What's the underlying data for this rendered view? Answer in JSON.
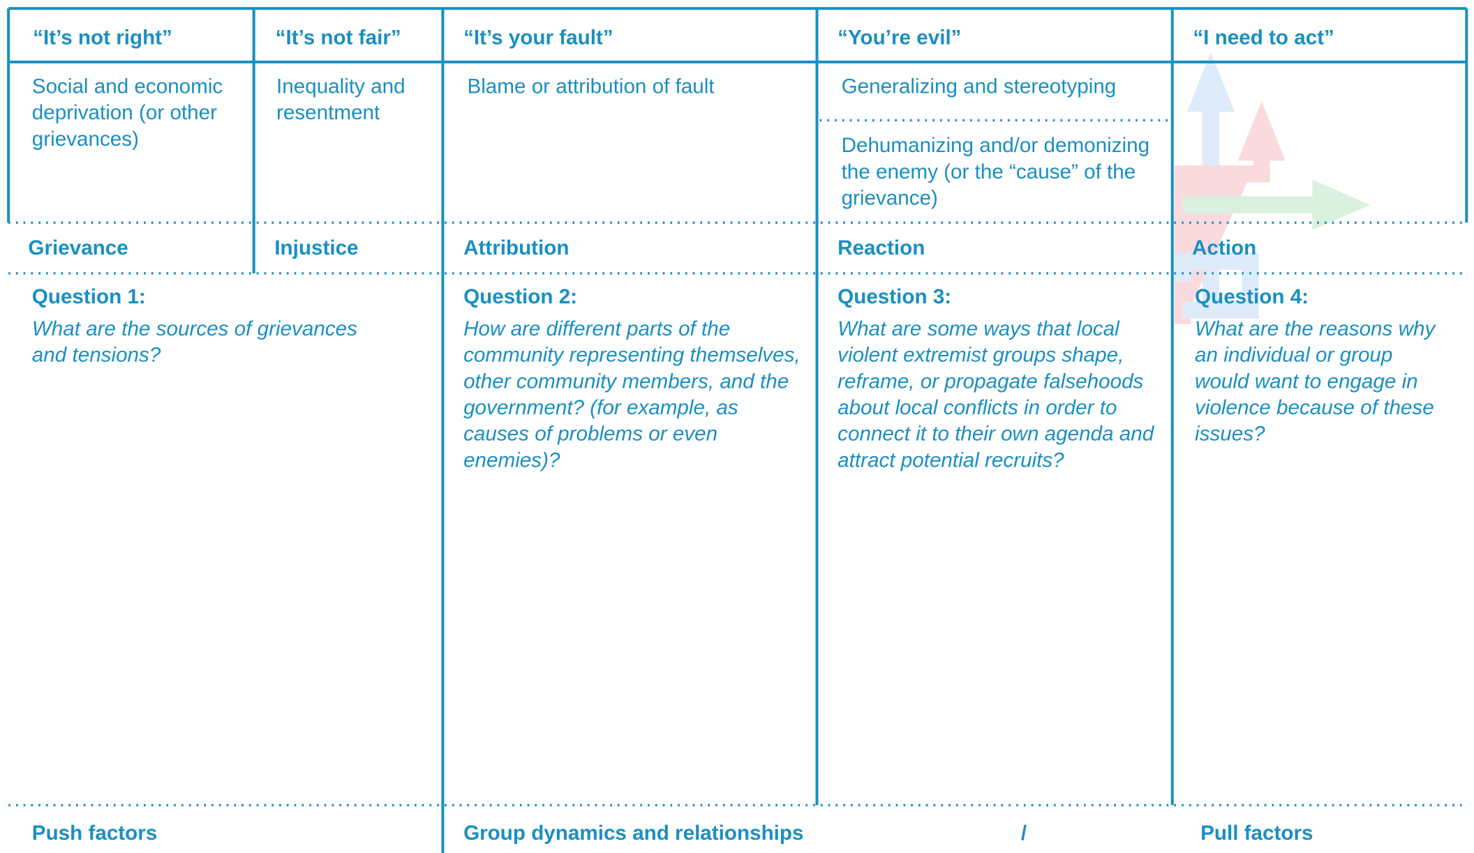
{
  "header": {
    "columns": [
      "“It’s not right”",
      "“It’s not fair”",
      "“It’s your fault”",
      "“You’re evil”",
      "“I need to act”"
    ]
  },
  "descriptions": {
    "grievance": "Social and economic deprivation (or other grievances)",
    "injustice": "Inequality and resentment",
    "attribution": "Blame or attribution of fault",
    "reaction": [
      "Generalizing and stereotyping",
      "Dehumanizing and/or demonizing the enemy (or the “cause” of the grievance)"
    ]
  },
  "labels": [
    "Grievance",
    "Injustice",
    "Attribution",
    "Reaction",
    "Action"
  ],
  "questions": [
    {
      "title": "Question 1:",
      "text": "What are the sources of grievances and tensions?"
    },
    {
      "title": "Question 2:",
      "text": "How are different parts of the community representing themselves, other community members, and the government? (for example, as causes of problems or even enemies)?"
    },
    {
      "title": "Question 3:",
      "text": "What are some ways that local violent extremist groups shape, reframe, or propagate falsehoods about local conflicts in order to connect it to their own agenda and attract potential recruits?"
    },
    {
      "title": "Question 4:",
      "text": "What are the reasons why an individual or group would want to engage in violence because of these issues?"
    }
  ],
  "footer": [
    "Push factors",
    "Group dynamics and relationships",
    "/",
    "Pull factors"
  ]
}
